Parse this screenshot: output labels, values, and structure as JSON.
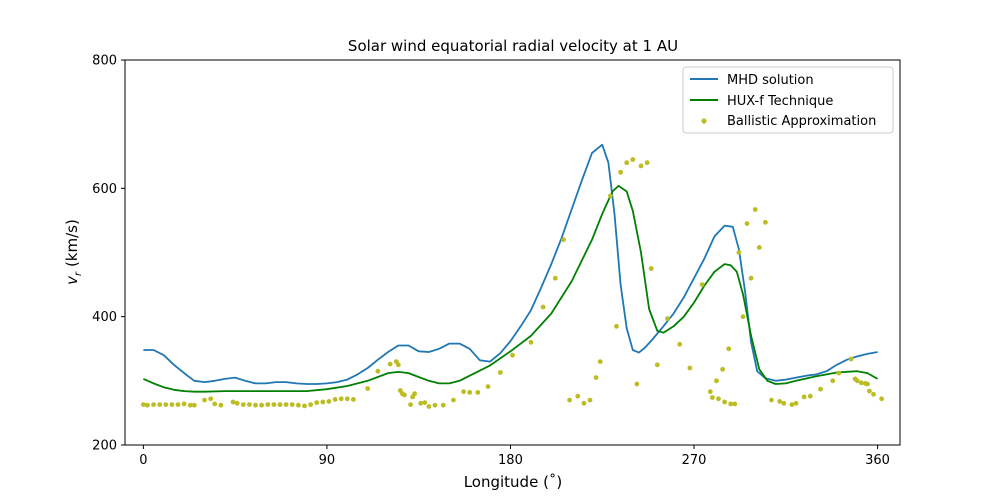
{
  "chart_data": {
    "type": "line",
    "title": "Solar wind equatorial radial velocity at 1 AU",
    "xlabel": "Longitude (˚)",
    "ylabel_symbol": "v",
    "ylabel_subscript": "r",
    "ylabel_unit": " (km/s)",
    "xlim": [
      -9,
      371
    ],
    "ylim": [
      200,
      800
    ],
    "xticks": [
      0,
      90,
      180,
      270,
      360
    ],
    "yticks": [
      200,
      400,
      600,
      800
    ],
    "grid": false,
    "legend_position": "top-right",
    "series": [
      {
        "name": "MHD solution",
        "kind": "line",
        "color": "#1f77b4",
        "x": [
          0,
          5,
          10,
          15,
          20,
          25,
          30,
          35,
          40,
          45,
          50,
          55,
          60,
          65,
          70,
          75,
          80,
          85,
          90,
          95,
          100,
          105,
          110,
          115,
          120,
          125,
          130,
          135,
          140,
          145,
          150,
          155,
          160,
          165,
          170,
          175,
          180,
          185,
          190,
          195,
          200,
          205,
          210,
          215,
          220,
          225,
          228,
          231,
          234,
          237,
          240,
          243,
          246,
          250,
          255,
          260,
          265,
          270,
          275,
          280,
          285,
          289,
          292,
          295,
          298,
          301,
          305,
          310,
          315,
          320,
          325,
          330,
          335,
          340,
          345,
          350,
          355,
          360
        ],
        "y": [
          348,
          348,
          340,
          325,
          312,
          300,
          298,
          300,
          303,
          305,
          300,
          296,
          296,
          298,
          298,
          296,
          295,
          295,
          296,
          298,
          302,
          310,
          320,
          333,
          345,
          355,
          355,
          346,
          345,
          350,
          358,
          358,
          350,
          332,
          330,
          343,
          362,
          385,
          410,
          445,
          482,
          522,
          567,
          612,
          655,
          668,
          640,
          560,
          450,
          382,
          348,
          344,
          352,
          366,
          385,
          405,
          430,
          460,
          490,
          525,
          542,
          540,
          505,
          440,
          360,
          315,
          304,
          300,
          302,
          305,
          308,
          310,
          315,
          325,
          333,
          338,
          342,
          345
        ]
      },
      {
        "name": "HUX-f Technique",
        "kind": "line",
        "color": "#008000",
        "x": [
          0,
          5,
          10,
          15,
          20,
          25,
          30,
          40,
          50,
          60,
          70,
          80,
          90,
          100,
          110,
          115,
          120,
          125,
          130,
          135,
          140,
          145,
          150,
          155,
          160,
          170,
          180,
          190,
          200,
          210,
          220,
          225,
          230,
          233,
          237,
          240,
          244,
          248,
          252,
          255,
          260,
          265,
          270,
          275,
          280,
          285,
          288,
          291,
          294,
          298,
          302,
          306,
          310,
          315,
          320,
          330,
          340,
          350,
          355,
          360
        ],
        "y": [
          303,
          296,
          290,
          286,
          284,
          283,
          283,
          284,
          284,
          284,
          284,
          284,
          287,
          292,
          300,
          306,
          312,
          314,
          312,
          306,
          300,
          296,
          296,
          300,
          308,
          324,
          346,
          370,
          405,
          455,
          520,
          560,
          595,
          604,
          595,
          565,
          500,
          412,
          378,
          375,
          385,
          400,
          422,
          448,
          470,
          482,
          480,
          470,
          435,
          370,
          318,
          300,
          295,
          296,
          300,
          307,
          313,
          315,
          312,
          303
        ]
      },
      {
        "name": "Ballistic Approximation",
        "kind": "scatter",
        "color": "#bcbd22",
        "x": [
          0,
          2,
          5,
          8,
          11,
          14,
          17,
          20,
          23,
          25,
          30,
          33,
          35,
          38,
          44,
          46,
          49,
          52,
          55,
          58,
          61,
          64,
          67,
          70,
          73,
          76,
          79,
          82,
          85,
          88,
          91,
          94,
          97,
          100,
          103,
          110,
          115,
          121,
          124,
          125,
          126,
          127,
          128,
          131,
          132,
          133,
          136,
          138,
          140,
          143,
          147,
          152,
          157,
          160,
          164,
          169,
          175,
          181,
          190,
          196,
          202,
          206,
          209,
          213,
          216,
          219,
          222,
          224,
          229,
          232,
          234,
          237,
          240,
          242,
          244,
          247,
          249,
          252,
          257,
          263,
          268,
          274,
          278,
          279,
          281,
          282,
          284,
          285,
          287,
          288,
          290,
          292,
          294,
          296,
          298,
          300,
          302,
          305,
          308,
          312,
          314,
          318,
          320,
          324,
          327,
          332,
          338,
          341,
          347,
          349,
          350,
          352,
          354,
          355,
          356,
          358,
          362
        ],
        "y": [
          263,
          262,
          263,
          263,
          263,
          263,
          263,
          264,
          262,
          262,
          270,
          272,
          264,
          262,
          267,
          265,
          263,
          263,
          262,
          262,
          263,
          263,
          263,
          263,
          263,
          262,
          261,
          263,
          266,
          267,
          268,
          271,
          272,
          272,
          271,
          288,
          315,
          326,
          330,
          325,
          285,
          280,
          278,
          263,
          275,
          280,
          265,
          266,
          260,
          262,
          262,
          270,
          283,
          282,
          282,
          291,
          313,
          340,
          360,
          415,
          460,
          520,
          270,
          276,
          265,
          270,
          305,
          330,
          588,
          385,
          625,
          640,
          645,
          295,
          635,
          640,
          475,
          325,
          397,
          357,
          320,
          450,
          283,
          274,
          300,
          272,
          318,
          267,
          350,
          264,
          264,
          500,
          400,
          545,
          460,
          567,
          508,
          547,
          270,
          268,
          265,
          263,
          265,
          275,
          276,
          287,
          300,
          312,
          334,
          303,
          300,
          297,
          296,
          295,
          284,
          279,
          272
        ]
      }
    ]
  }
}
